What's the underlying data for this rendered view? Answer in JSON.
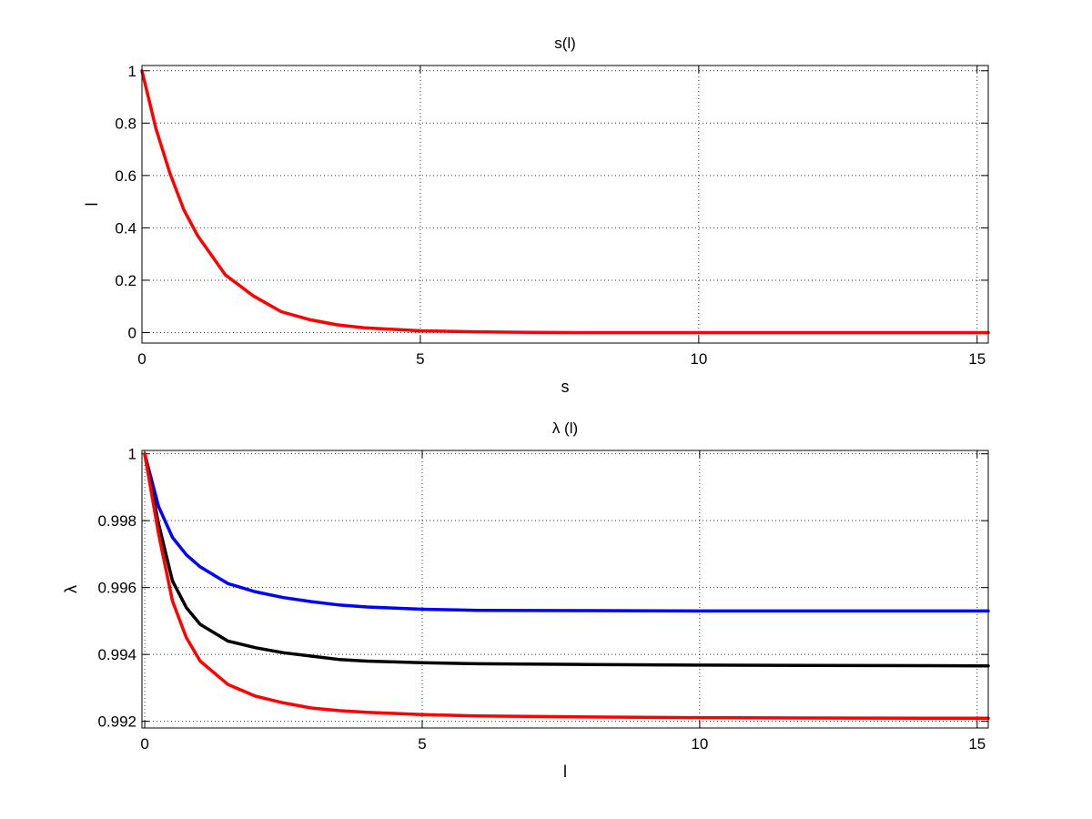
{
  "chart_data": [
    {
      "type": "line",
      "title": "s(l)",
      "xlabel": "s",
      "ylabel": "l",
      "xlim": [
        0,
        15.2
      ],
      "ylim": [
        -0.04,
        1.02
      ],
      "xticks": [
        0,
        5,
        10,
        15
      ],
      "yticks": [
        0,
        0.2,
        0.4,
        0.6,
        0.8,
        1
      ],
      "xtick_labels": [
        "0",
        "5",
        "10",
        "15"
      ],
      "ytick_labels": [
        "0",
        "0.2",
        "0.4",
        "0.6",
        "0.8",
        "1"
      ],
      "grid": true,
      "series": [
        {
          "color": "#ff0000",
          "x": [
            0,
            0.25,
            0.5,
            0.75,
            1,
            1.5,
            2,
            2.5,
            3,
            3.5,
            4,
            5,
            6,
            7,
            8,
            10,
            12,
            15.2
          ],
          "y": [
            1,
            0.78,
            0.61,
            0.47,
            0.37,
            0.22,
            0.14,
            0.08,
            0.05,
            0.03,
            0.018,
            0.007,
            0.003,
            0.001,
            0,
            0,
            0,
            0
          ]
        }
      ]
    },
    {
      "type": "line",
      "title": "λ (l)",
      "xlabel": "l",
      "ylabel": "λ",
      "xlim": [
        -0.05,
        15.2
      ],
      "ylim": [
        0.9918,
        1.0001
      ],
      "xticks": [
        0,
        5,
        10,
        15
      ],
      "yticks": [
        0.992,
        0.994,
        0.996,
        0.998,
        1
      ],
      "xtick_labels": [
        "0",
        "5",
        "10",
        "15"
      ],
      "ytick_labels": [
        "0.992",
        "0.994",
        "0.996",
        "0.998",
        "1"
      ],
      "grid": true,
      "series": [
        {
          "color": "#0000ff",
          "x": [
            0,
            0.25,
            0.5,
            0.75,
            1,
            1.5,
            2,
            2.5,
            3,
            3.5,
            4,
            5,
            6,
            8,
            10,
            12,
            15.2
          ],
          "y": [
            1,
            0.99842,
            0.9975,
            0.99698,
            0.99662,
            0.99612,
            0.99587,
            0.9957,
            0.99558,
            0.99548,
            0.99542,
            0.99535,
            0.99532,
            0.99531,
            0.9953,
            0.9953,
            0.9953
          ]
        },
        {
          "color": "#000000",
          "x": [
            0,
            0.25,
            0.5,
            0.75,
            1,
            1.5,
            2,
            2.5,
            3,
            3.5,
            4,
            5,
            6,
            8,
            10,
            12,
            15.2
          ],
          "y": [
            1,
            0.9979,
            0.9962,
            0.9954,
            0.9949,
            0.9944,
            0.9942,
            0.99405,
            0.99395,
            0.99385,
            0.9938,
            0.99375,
            0.99372,
            0.9937,
            0.99368,
            0.99367,
            0.99366
          ]
        },
        {
          "color": "#ff0000",
          "x": [
            0,
            0.25,
            0.5,
            0.75,
            1,
            1.5,
            2,
            2.5,
            3,
            3.5,
            4,
            5,
            6,
            8,
            10,
            12,
            15.2
          ],
          "y": [
            1,
            0.9976,
            0.9956,
            0.9945,
            0.9938,
            0.9931,
            0.99275,
            0.99255,
            0.9924,
            0.99232,
            0.99227,
            0.9922,
            0.99216,
            0.99213,
            0.99211,
            0.9921,
            0.99209
          ]
        }
      ]
    }
  ]
}
